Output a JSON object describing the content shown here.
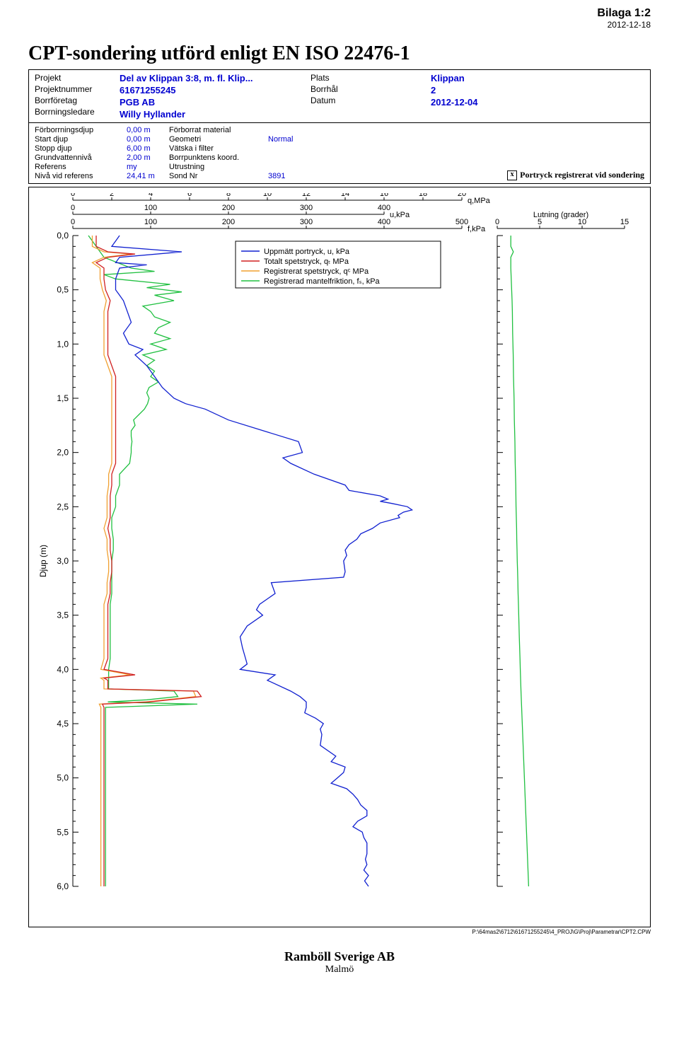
{
  "bilaga": {
    "title": "Bilaga 1:2",
    "date": "2012-12-18"
  },
  "main_title": "CPT-sondering utförd enligt EN ISO 22476-1",
  "header": {
    "labels": {
      "projekt": "Projekt",
      "projektnummer": "Projektnummer",
      "borrforetag": "Borrföretag",
      "borrningsledare": "Borrningsledare",
      "plats": "Plats",
      "borrhal": "Borrhål",
      "datum": "Datum"
    },
    "values": {
      "projekt": "Del av Klippan 3:8, m. fl. Klip...",
      "projektnummer": "61671255245",
      "borrforetag": "PGB AB",
      "borrningsledare": "Willy Hyllander",
      "plats": "Klippan",
      "borrhal": "2",
      "datum": "2012-12-04"
    }
  },
  "params": {
    "labels": {
      "forborrningsdjup": "Förborrningsdjup",
      "start_djup": "Start djup",
      "stopp_djup": "Stopp djup",
      "grundvattenniva": "Grundvattennivå",
      "referens": "Referens",
      "niva_vid_referens": "Nivå vid referens",
      "forborrat_material": "Förborrat material",
      "geometri": "Geometri",
      "vatska_i_filter": "Vätska i filter",
      "borrpunktens_koord": "Borrpunktens koord.",
      "utrustning": "Utrustning",
      "sond_nr": "Sond Nr"
    },
    "values": {
      "forborrningsdjup": "0,00 m",
      "start_djup": "0,00 m",
      "stopp_djup": "6,00 m",
      "grundvattenniva": "2,00 m",
      "referens": "my",
      "niva_vid_referens": "24,41 m",
      "geometri": "Normal",
      "sond_nr": "3891"
    },
    "note_checkbox": "x",
    "note_text": "Portryck registrerat vid sondering"
  },
  "chart": {
    "axis1": {
      "min": 0,
      "max": 20,
      "step": 2,
      "unit": "q,MPa"
    },
    "axis2": {
      "min": 0,
      "max": 400,
      "step": 100,
      "unit": "u,kPa"
    },
    "axis3": {
      "min": 0,
      "max": 500,
      "step": 100,
      "unit": "f,kPa"
    },
    "depth": {
      "min": 0.0,
      "max": 6.0,
      "step": 0.5,
      "label": "Djup  (m)"
    },
    "lutning": {
      "min": 0,
      "max": 15,
      "step": 5,
      "label": "Lutning (grader)"
    },
    "colors": {
      "u_blue": "#1020d0",
      "qt_red": "#d02020",
      "qc_orange": "#f0a030",
      "fs_green": "#20c040",
      "grid": "#000000",
      "bg": "#ffffff",
      "text": "#000000"
    },
    "legend": [
      {
        "color": "#1020d0",
        "label": "Uppmätt portryck, u, kPa"
      },
      {
        "color": "#d02020",
        "label": "Totalt spetstryck, qₜ MPa"
      },
      {
        "color": "#f0a030",
        "label": "Registrerat spetstryck, qᶜ MPa"
      },
      {
        "color": "#20c040",
        "label": "Registrerad mantelfriktion, fₛ, kPa"
      }
    ],
    "series_u": [
      [
        0.0,
        60
      ],
      [
        0.05,
        55
      ],
      [
        0.1,
        50
      ],
      [
        0.15,
        140
      ],
      [
        0.2,
        60
      ],
      [
        0.25,
        55
      ],
      [
        0.27,
        95
      ],
      [
        0.3,
        60
      ],
      [
        0.4,
        55
      ],
      [
        0.5,
        55
      ],
      [
        0.55,
        60
      ],
      [
        0.6,
        65
      ],
      [
        0.7,
        70
      ],
      [
        0.8,
        75
      ],
      [
        0.9,
        65
      ],
      [
        1.0,
        72
      ],
      [
        1.05,
        90
      ],
      [
        1.1,
        80
      ],
      [
        1.2,
        95
      ],
      [
        1.3,
        105
      ],
      [
        1.4,
        115
      ],
      [
        1.5,
        130
      ],
      [
        1.55,
        145
      ],
      [
        1.6,
        170
      ],
      [
        1.7,
        200
      ],
      [
        1.8,
        245
      ],
      [
        1.9,
        290
      ],
      [
        2.0,
        295
      ],
      [
        2.05,
        270
      ],
      [
        2.1,
        280
      ],
      [
        2.2,
        310
      ],
      [
        2.3,
        350
      ],
      [
        2.35,
        355
      ],
      [
        2.4,
        395
      ],
      [
        2.43,
        405
      ],
      [
        2.45,
        395
      ],
      [
        2.47,
        410
      ],
      [
        2.5,
        430
      ],
      [
        2.53,
        436
      ],
      [
        2.55,
        425
      ],
      [
        2.58,
        418
      ],
      [
        2.6,
        420
      ],
      [
        2.65,
        395
      ],
      [
        2.7,
        385
      ],
      [
        2.75,
        370
      ],
      [
        2.8,
        365
      ],
      [
        2.85,
        355
      ],
      [
        2.9,
        350
      ],
      [
        2.95,
        352
      ],
      [
        3.0,
        348
      ],
      [
        3.1,
        350
      ],
      [
        3.15,
        348
      ],
      [
        3.2,
        255
      ],
      [
        3.3,
        260
      ],
      [
        3.4,
        240
      ],
      [
        3.45,
        236
      ],
      [
        3.5,
        244
      ],
      [
        3.6,
        224
      ],
      [
        3.7,
        215
      ],
      [
        3.8,
        218
      ],
      [
        3.9,
        222
      ],
      [
        3.95,
        224
      ],
      [
        4.0,
        215
      ],
      [
        4.05,
        260
      ],
      [
        4.1,
        250
      ],
      [
        4.2,
        280
      ],
      [
        4.25,
        292
      ],
      [
        4.3,
        300
      ],
      [
        4.35,
        300
      ],
      [
        4.4,
        298
      ],
      [
        4.45,
        312
      ],
      [
        4.5,
        322
      ],
      [
        4.55,
        318
      ],
      [
        4.6,
        320
      ],
      [
        4.7,
        318
      ],
      [
        4.8,
        338
      ],
      [
        4.85,
        332
      ],
      [
        4.9,
        350
      ],
      [
        4.95,
        348
      ],
      [
        5.0,
        340
      ],
      [
        5.05,
        332
      ],
      [
        5.1,
        352
      ],
      [
        5.15,
        360
      ],
      [
        5.2,
        366
      ],
      [
        5.25,
        370
      ],
      [
        5.3,
        378
      ],
      [
        5.35,
        378
      ],
      [
        5.4,
        366
      ],
      [
        5.45,
        360
      ],
      [
        5.5,
        372
      ],
      [
        5.55,
        374
      ],
      [
        5.6,
        378
      ],
      [
        5.7,
        378
      ],
      [
        5.75,
        376
      ],
      [
        5.8,
        378
      ],
      [
        5.85,
        374
      ],
      [
        5.9,
        380
      ],
      [
        5.95,
        375
      ],
      [
        6.0,
        380
      ]
    ],
    "series_qt": [
      [
        0.0,
        30
      ],
      [
        0.1,
        30
      ],
      [
        0.15,
        45
      ],
      [
        0.17,
        80
      ],
      [
        0.2,
        45
      ],
      [
        0.25,
        30
      ],
      [
        0.3,
        40
      ],
      [
        0.4,
        40
      ],
      [
        0.5,
        42
      ],
      [
        0.6,
        48
      ],
      [
        0.7,
        45
      ],
      [
        0.8,
        45
      ],
      [
        0.9,
        45
      ],
      [
        1.0,
        45
      ],
      [
        1.1,
        45
      ],
      [
        1.2,
        50
      ],
      [
        1.3,
        55
      ],
      [
        1.4,
        55
      ],
      [
        1.5,
        55
      ],
      [
        1.6,
        55
      ],
      [
        1.7,
        55
      ],
      [
        1.8,
        55
      ],
      [
        1.9,
        55
      ],
      [
        2.0,
        55
      ],
      [
        2.1,
        55
      ],
      [
        2.2,
        50
      ],
      [
        2.3,
        50
      ],
      [
        2.4,
        48
      ],
      [
        2.5,
        48
      ],
      [
        2.6,
        48
      ],
      [
        2.7,
        45
      ],
      [
        2.8,
        48
      ],
      [
        2.9,
        48
      ],
      [
        3.0,
        50
      ],
      [
        3.1,
        50
      ],
      [
        3.2,
        48
      ],
      [
        3.3,
        48
      ],
      [
        3.4,
        45
      ],
      [
        3.5,
        45
      ],
      [
        3.6,
        45
      ],
      [
        3.7,
        45
      ],
      [
        3.8,
        45
      ],
      [
        3.9,
        45
      ],
      [
        4.0,
        40
      ],
      [
        4.05,
        80
      ],
      [
        4.08,
        40
      ],
      [
        4.1,
        45
      ],
      [
        4.18,
        45
      ],
      [
        4.2,
        160
      ],
      [
        4.25,
        165
      ],
      [
        4.3,
        98
      ],
      [
        4.32,
        38
      ],
      [
        4.35,
        40
      ],
      [
        4.4,
        40
      ],
      [
        4.5,
        40
      ],
      [
        4.6,
        40
      ],
      [
        4.7,
        40
      ],
      [
        4.8,
        40
      ],
      [
        4.9,
        40
      ],
      [
        5.0,
        40
      ],
      [
        5.1,
        40
      ],
      [
        5.2,
        40
      ],
      [
        5.3,
        40
      ],
      [
        5.4,
        40
      ],
      [
        5.5,
        40
      ],
      [
        5.6,
        40
      ],
      [
        5.7,
        40
      ],
      [
        5.8,
        40
      ],
      [
        5.9,
        40
      ],
      [
        6.0,
        40
      ]
    ],
    "series_qc": [
      [
        0.0,
        25
      ],
      [
        0.1,
        25
      ],
      [
        0.15,
        40
      ],
      [
        0.17,
        75
      ],
      [
        0.2,
        40
      ],
      [
        0.25,
        25
      ],
      [
        0.3,
        35
      ],
      [
        0.4,
        35
      ],
      [
        0.5,
        38
      ],
      [
        0.6,
        43
      ],
      [
        0.7,
        40
      ],
      [
        0.8,
        40
      ],
      [
        0.9,
        40
      ],
      [
        1.0,
        40
      ],
      [
        1.1,
        40
      ],
      [
        1.2,
        45
      ],
      [
        1.3,
        50
      ],
      [
        1.4,
        50
      ],
      [
        1.5,
        50
      ],
      [
        1.6,
        50
      ],
      [
        1.7,
        50
      ],
      [
        1.8,
        50
      ],
      [
        1.9,
        50
      ],
      [
        2.0,
        50
      ],
      [
        2.1,
        50
      ],
      [
        2.2,
        46
      ],
      [
        2.3,
        46
      ],
      [
        2.4,
        44
      ],
      [
        2.5,
        44
      ],
      [
        2.6,
        44
      ],
      [
        2.7,
        40
      ],
      [
        2.8,
        44
      ],
      [
        2.9,
        44
      ],
      [
        3.0,
        46
      ],
      [
        3.1,
        46
      ],
      [
        3.2,
        44
      ],
      [
        3.3,
        44
      ],
      [
        3.4,
        40
      ],
      [
        3.5,
        40
      ],
      [
        3.6,
        40
      ],
      [
        3.7,
        40
      ],
      [
        3.8,
        40
      ],
      [
        3.9,
        40
      ],
      [
        4.0,
        36
      ],
      [
        4.05,
        74
      ],
      [
        4.08,
        36
      ],
      [
        4.1,
        40
      ],
      [
        4.18,
        40
      ],
      [
        4.2,
        155
      ],
      [
        4.25,
        158
      ],
      [
        4.3,
        94
      ],
      [
        4.32,
        34
      ],
      [
        4.35,
        36
      ],
      [
        4.4,
        36
      ],
      [
        4.5,
        36
      ],
      [
        4.6,
        36
      ],
      [
        4.7,
        36
      ],
      [
        4.8,
        36
      ],
      [
        4.9,
        36
      ],
      [
        5.0,
        36
      ],
      [
        5.1,
        36
      ],
      [
        5.2,
        36
      ],
      [
        5.3,
        36
      ],
      [
        5.4,
        36
      ],
      [
        5.5,
        36
      ],
      [
        5.6,
        36
      ],
      [
        5.7,
        36
      ],
      [
        5.8,
        36
      ],
      [
        5.9,
        36
      ],
      [
        6.0,
        36
      ]
    ],
    "series_fs": [
      [
        0.0,
        20
      ],
      [
        0.1,
        30
      ],
      [
        0.2,
        40
      ],
      [
        0.3,
        75
      ],
      [
        0.33,
        105
      ],
      [
        0.36,
        40
      ],
      [
        0.4,
        55
      ],
      [
        0.45,
        125
      ],
      [
        0.48,
        95
      ],
      [
        0.52,
        140
      ],
      [
        0.55,
        105
      ],
      [
        0.6,
        130
      ],
      [
        0.65,
        90
      ],
      [
        0.7,
        100
      ],
      [
        0.75,
        105
      ],
      [
        0.8,
        125
      ],
      [
        0.85,
        110
      ],
      [
        0.9,
        105
      ],
      [
        0.95,
        125
      ],
      [
        1.0,
        100
      ],
      [
        1.05,
        120
      ],
      [
        1.1,
        90
      ],
      [
        1.15,
        105
      ],
      [
        1.2,
        95
      ],
      [
        1.25,
        105
      ],
      [
        1.3,
        100
      ],
      [
        1.35,
        110
      ],
      [
        1.4,
        98
      ],
      [
        1.45,
        95
      ],
      [
        1.5,
        98
      ],
      [
        1.55,
        96
      ],
      [
        1.6,
        92
      ],
      [
        1.65,
        85
      ],
      [
        1.7,
        78
      ],
      [
        1.75,
        80
      ],
      [
        1.8,
        75
      ],
      [
        1.85,
        75
      ],
      [
        1.9,
        76
      ],
      [
        1.95,
        75
      ],
      [
        2.0,
        75
      ],
      [
        2.05,
        74
      ],
      [
        2.1,
        73
      ],
      [
        2.2,
        60
      ],
      [
        2.3,
        60
      ],
      [
        2.4,
        55
      ],
      [
        2.5,
        55
      ],
      [
        2.6,
        50
      ],
      [
        2.7,
        50
      ],
      [
        2.8,
        52
      ],
      [
        2.9,
        52
      ],
      [
        3.0,
        50
      ],
      [
        3.1,
        50
      ],
      [
        3.2,
        50
      ],
      [
        3.3,
        50
      ],
      [
        3.4,
        48
      ],
      [
        3.5,
        48
      ],
      [
        3.6,
        48
      ],
      [
        3.7,
        48
      ],
      [
        3.8,
        48
      ],
      [
        3.9,
        48
      ],
      [
        4.0,
        46
      ],
      [
        4.1,
        46
      ],
      [
        4.18,
        46
      ],
      [
        4.2,
        130
      ],
      [
        4.25,
        135
      ],
      [
        4.28,
        95
      ],
      [
        4.3,
        45
      ],
      [
        4.32,
        160
      ],
      [
        4.35,
        42
      ],
      [
        4.4,
        42
      ],
      [
        4.5,
        42
      ],
      [
        4.6,
        42
      ],
      [
        4.7,
        42
      ],
      [
        4.8,
        42
      ],
      [
        4.9,
        42
      ],
      [
        5.0,
        42
      ],
      [
        5.1,
        42
      ],
      [
        5.2,
        42
      ],
      [
        5.3,
        42
      ],
      [
        5.4,
        42
      ],
      [
        5.5,
        42
      ],
      [
        5.6,
        42
      ],
      [
        5.7,
        42
      ],
      [
        5.8,
        42
      ],
      [
        5.9,
        42
      ],
      [
        6.0,
        42
      ]
    ],
    "series_lutning": [
      [
        0.0,
        1.6
      ],
      [
        0.1,
        1.6
      ],
      [
        0.15,
        1.9
      ],
      [
        0.2,
        1.6
      ],
      [
        0.3,
        1.6
      ],
      [
        0.4,
        1.65
      ],
      [
        0.5,
        1.7
      ],
      [
        0.6,
        1.75
      ],
      [
        0.7,
        1.78
      ],
      [
        0.8,
        1.8
      ],
      [
        0.9,
        1.82
      ],
      [
        1.0,
        1.85
      ],
      [
        1.1,
        1.88
      ],
      [
        1.2,
        1.9
      ],
      [
        1.3,
        1.92
      ],
      [
        1.4,
        1.95
      ],
      [
        1.5,
        1.98
      ],
      [
        1.6,
        2.0
      ],
      [
        1.7,
        2.02
      ],
      [
        1.8,
        2.05
      ],
      [
        1.9,
        2.08
      ],
      [
        2.0,
        2.1
      ],
      [
        2.1,
        2.12
      ],
      [
        2.2,
        2.15
      ],
      [
        2.3,
        2.18
      ],
      [
        2.4,
        2.2
      ],
      [
        2.5,
        2.22
      ],
      [
        2.6,
        2.25
      ],
      [
        2.7,
        2.28
      ],
      [
        2.8,
        2.3
      ],
      [
        2.9,
        2.33
      ],
      [
        3.0,
        2.36
      ],
      [
        3.1,
        2.4
      ],
      [
        3.2,
        2.43
      ],
      [
        3.3,
        2.46
      ],
      [
        3.4,
        2.5
      ],
      [
        3.5,
        2.53
      ],
      [
        3.6,
        2.57
      ],
      [
        3.7,
        2.6
      ],
      [
        3.8,
        2.64
      ],
      [
        3.9,
        2.68
      ],
      [
        4.0,
        2.72
      ],
      [
        4.1,
        2.76
      ],
      [
        4.2,
        2.8
      ],
      [
        4.3,
        2.85
      ],
      [
        4.4,
        2.9
      ],
      [
        4.5,
        2.95
      ],
      [
        4.6,
        3.0
      ],
      [
        4.7,
        3.05
      ],
      [
        4.8,
        3.1
      ],
      [
        4.9,
        3.15
      ],
      [
        5.0,
        3.2
      ],
      [
        5.1,
        3.25
      ],
      [
        5.2,
        3.3
      ],
      [
        5.3,
        3.35
      ],
      [
        5.4,
        3.4
      ],
      [
        5.5,
        3.45
      ],
      [
        5.6,
        3.5
      ],
      [
        5.7,
        3.55
      ],
      [
        5.8,
        3.6
      ],
      [
        5.9,
        3.65
      ],
      [
        6.0,
        3.7
      ]
    ]
  },
  "footer": {
    "company": "Ramböll Sverige AB",
    "city": "Malmö"
  },
  "file_path": "P:\\64mas2\\6712\\61671255245\\4_PROJ\\G\\Proj\\Parametrar\\CPT2.CPW"
}
